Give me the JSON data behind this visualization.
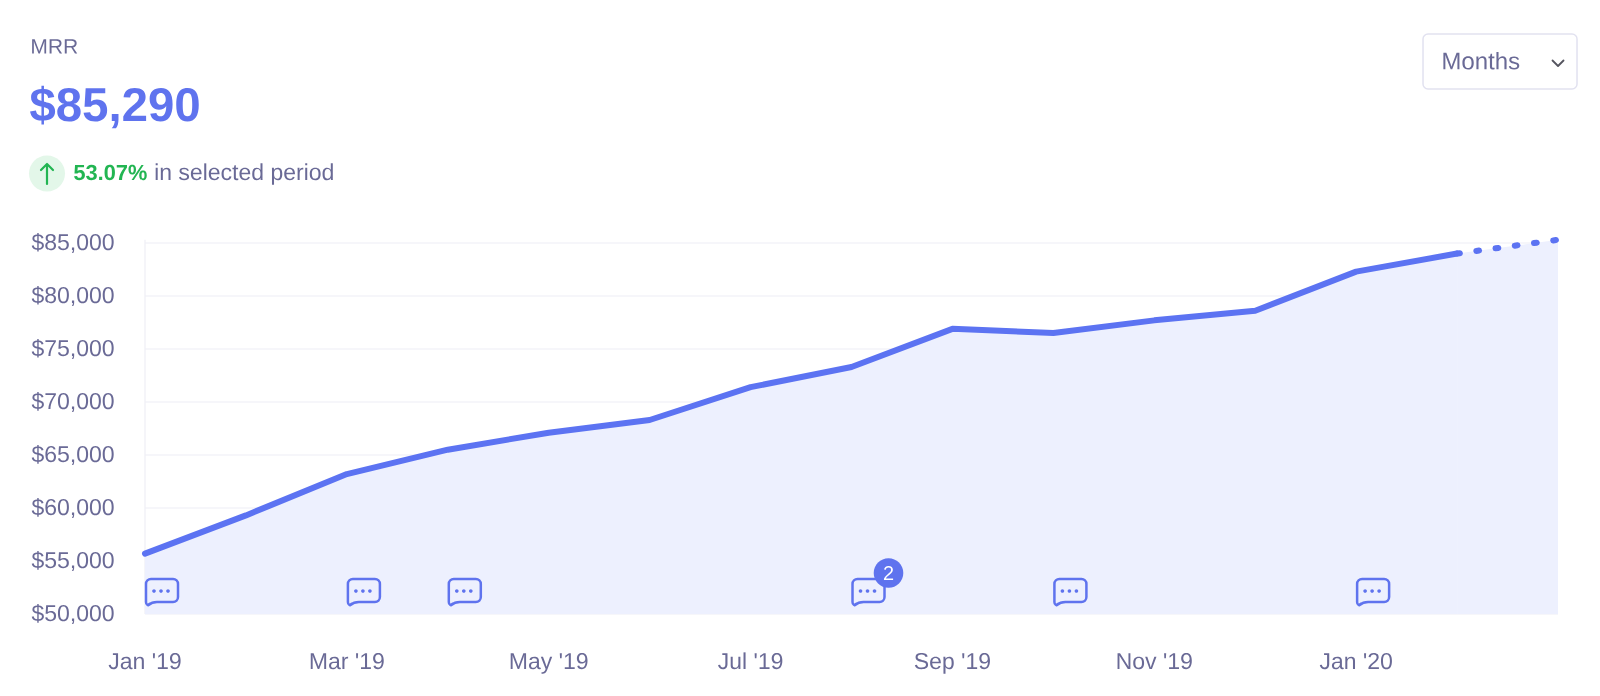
{
  "chart_data": {
    "type": "area",
    "title": "MRR",
    "subtitle": "$85,290",
    "annotations": [
      "53.07%",
      "in selected period",
      "Months",
      "2"
    ],
    "xlim": [
      "2019-01",
      "2020-03"
    ],
    "xticks": [
      {
        "value": "2019-01",
        "label": "Jan '19"
      },
      {
        "value": "2019-03",
        "label": "Mar '19"
      },
      {
        "value": "2019-05",
        "label": "May '19"
      },
      {
        "value": "2019-07",
        "label": "Jul '19"
      },
      {
        "value": "2019-09",
        "label": "Sep '19"
      },
      {
        "value": "2019-11",
        "label": "Nov '19"
      },
      {
        "value": "2020-01",
        "label": "Jan '20"
      }
    ],
    "ylim": [
      50000,
      85300
    ],
    "yticks": [
      {
        "value": 50000,
        "label": "$50,000"
      },
      {
        "value": 55000,
        "label": "$55,000"
      },
      {
        "value": 60000,
        "label": "$60,000"
      },
      {
        "value": 65000,
        "label": "$65,000"
      },
      {
        "value": 70000,
        "label": "$70,000"
      },
      {
        "value": 75000,
        "label": "$75,000"
      },
      {
        "value": 80000,
        "label": "$80,000"
      },
      {
        "value": 85000,
        "label": "$85,000"
      }
    ],
    "grid": "y",
    "series": [
      {
        "color": "#5c73f2",
        "line_style": "solid",
        "x": [
          "2019-01",
          "2019-02",
          "2019-03",
          "2019-04",
          "2019-05",
          "2019-06",
          "2019-07",
          "2019-08",
          "2019-09",
          "2019-10",
          "2019-11",
          "2019-12",
          "2020-01",
          "2020-02"
        ],
        "values": [
          55700,
          59300,
          63200,
          65500,
          67100,
          68300,
          71400,
          73300,
          76900,
          76500,
          77700,
          78600,
          82300,
          84000
        ]
      },
      {
        "color": "#5c73f2",
        "line_style": "dotted",
        "x": [
          "2020-02",
          "2020-03"
        ],
        "values": [
          84000,
          85300
        ]
      }
    ]
  }
}
